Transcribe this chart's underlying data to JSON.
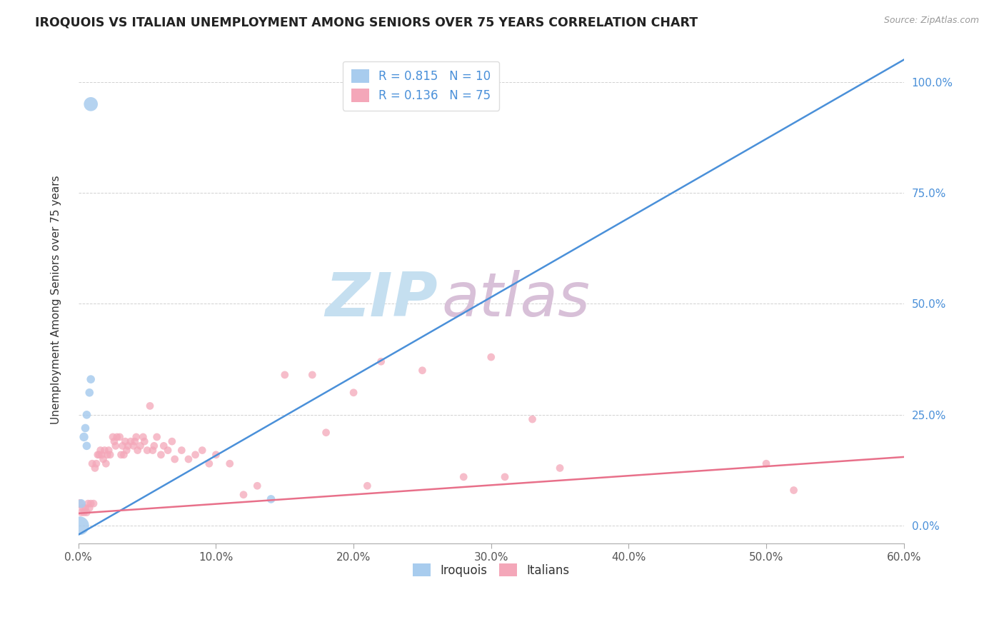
{
  "title": "IROQUOIS VS ITALIAN UNEMPLOYMENT AMONG SENIORS OVER 75 YEARS CORRELATION CHART",
  "source": "Source: ZipAtlas.com",
  "ylabel": "Unemployment Among Seniors over 75 years",
  "x_tick_labels": [
    "0.0%",
    "10.0%",
    "20.0%",
    "30.0%",
    "40.0%",
    "50.0%",
    "60.0%"
  ],
  "y_tick_labels": [
    "0.0%",
    "25.0%",
    "50.0%",
    "75.0%",
    "100.0%"
  ],
  "x_min": 0.0,
  "x_max": 0.6,
  "y_min": -0.04,
  "y_max": 1.06,
  "legend_label_iroquois": "Iroquois",
  "legend_label_italians": "Italians",
  "legend_r_iroquois": "R = 0.815",
  "legend_n_iroquois": "N = 10",
  "legend_r_italians": "R = 0.136",
  "legend_n_italians": "N = 75",
  "color_iroquois": "#A8CCEE",
  "color_italians": "#F4A7B9",
  "color_iroquois_line": "#4A90D9",
  "color_italians_line": "#E8708A",
  "watermark_zip": "ZIP",
  "watermark_atlas": "atlas",
  "watermark_color_zip": "#C5DFF0",
  "watermark_color_atlas": "#D8C0D8",
  "iroquois_x": [
    0.001,
    0.002,
    0.004,
    0.005,
    0.006,
    0.006,
    0.008,
    0.009,
    0.009,
    0.14
  ],
  "iroquois_y": [
    0.0,
    0.05,
    0.2,
    0.22,
    0.25,
    0.18,
    0.3,
    0.33,
    0.95,
    0.06
  ],
  "iroquois_size": [
    350,
    80,
    80,
    70,
    70,
    70,
    70,
    70,
    200,
    70
  ],
  "italians_x": [
    0.001,
    0.002,
    0.003,
    0.004,
    0.005,
    0.006,
    0.007,
    0.008,
    0.009,
    0.01,
    0.011,
    0.012,
    0.013,
    0.014,
    0.015,
    0.016,
    0.017,
    0.018,
    0.019,
    0.02,
    0.021,
    0.022,
    0.023,
    0.025,
    0.026,
    0.027,
    0.028,
    0.03,
    0.031,
    0.032,
    0.033,
    0.034,
    0.035,
    0.036,
    0.038,
    0.04,
    0.041,
    0.042,
    0.043,
    0.045,
    0.047,
    0.048,
    0.05,
    0.052,
    0.054,
    0.055,
    0.057,
    0.06,
    0.062,
    0.065,
    0.068,
    0.07,
    0.075,
    0.08,
    0.085,
    0.09,
    0.095,
    0.1,
    0.11,
    0.12,
    0.13,
    0.15,
    0.17,
    0.18,
    0.2,
    0.21,
    0.22,
    0.25,
    0.28,
    0.3,
    0.31,
    0.33,
    0.35,
    0.5,
    0.52
  ],
  "italians_y": [
    0.05,
    0.03,
    0.04,
    0.03,
    0.04,
    0.03,
    0.05,
    0.04,
    0.05,
    0.14,
    0.05,
    0.13,
    0.14,
    0.16,
    0.16,
    0.17,
    0.16,
    0.15,
    0.17,
    0.14,
    0.16,
    0.17,
    0.16,
    0.2,
    0.19,
    0.18,
    0.2,
    0.2,
    0.16,
    0.18,
    0.16,
    0.19,
    0.17,
    0.18,
    0.19,
    0.18,
    0.19,
    0.2,
    0.17,
    0.18,
    0.2,
    0.19,
    0.17,
    0.27,
    0.17,
    0.18,
    0.2,
    0.16,
    0.18,
    0.17,
    0.19,
    0.15,
    0.17,
    0.15,
    0.16,
    0.17,
    0.14,
    0.16,
    0.14,
    0.07,
    0.09,
    0.34,
    0.34,
    0.21,
    0.3,
    0.09,
    0.37,
    0.35,
    0.11,
    0.38,
    0.11,
    0.24,
    0.13,
    0.14,
    0.08
  ],
  "italians_size": [
    80,
    60,
    60,
    60,
    60,
    60,
    60,
    60,
    60,
    60,
    60,
    60,
    60,
    60,
    60,
    60,
    60,
    60,
    60,
    60,
    60,
    60,
    60,
    60,
    60,
    60,
    60,
    60,
    60,
    60,
    60,
    60,
    60,
    60,
    60,
    60,
    60,
    60,
    60,
    60,
    60,
    60,
    60,
    60,
    60,
    60,
    60,
    60,
    60,
    60,
    60,
    60,
    60,
    60,
    60,
    60,
    60,
    60,
    60,
    60,
    60,
    60,
    60,
    60,
    60,
    60,
    60,
    60,
    60,
    60,
    60,
    60,
    60,
    60,
    60
  ],
  "iroq_trend_x0": 0.0,
  "iroq_trend_y0": -0.02,
  "iroq_trend_x1": 0.6,
  "iroq_trend_y1": 1.05,
  "ital_trend_x0": 0.0,
  "ital_trend_y0": 0.028,
  "ital_trend_x1": 0.6,
  "ital_trend_y1": 0.155
}
